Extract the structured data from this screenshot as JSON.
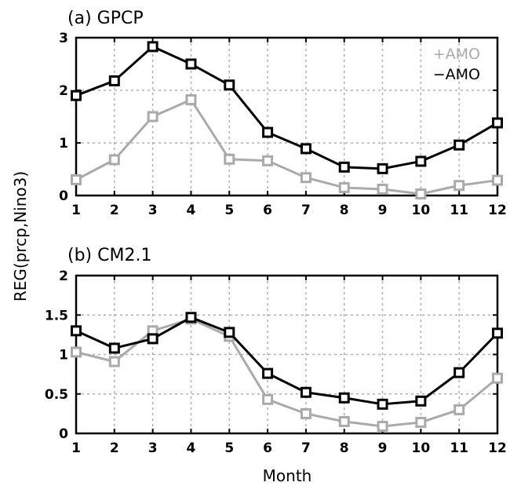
{
  "chart_data": [
    {
      "type": "line",
      "title": "(a)  GPCP",
      "x": [
        1,
        2,
        3,
        4,
        5,
        6,
        7,
        8,
        9,
        10,
        11,
        12
      ],
      "ylim": [
        0,
        3
      ],
      "yticks": [
        "0",
        "1",
        "2",
        "3"
      ],
      "yticks_values": [
        0,
        1,
        2,
        3
      ],
      "xticks": [
        "1",
        "2",
        "3",
        "4",
        "5",
        "6",
        "7",
        "8",
        "9",
        "10",
        "11",
        "12"
      ],
      "grid": true,
      "legend": {
        "placement": "top-right",
        "entries": [
          "+AMO",
          "−AMO"
        ]
      },
      "series": [
        {
          "name": "+AMO",
          "color": "#aaaaaa",
          "marker": "hollow-square",
          "values": [
            0.3,
            0.68,
            1.5,
            1.82,
            0.69,
            0.66,
            0.34,
            0.15,
            0.12,
            0.03,
            0.19,
            0.29
          ]
        },
        {
          "name": "−AMO",
          "color": "#000000",
          "marker": "hollow-square",
          "values": [
            1.9,
            2.18,
            2.83,
            2.5,
            2.1,
            1.2,
            0.89,
            0.54,
            0.51,
            0.65,
            0.96,
            1.38
          ]
        }
      ]
    },
    {
      "type": "line",
      "title": "(b)  CM2.1",
      "x": [
        1,
        2,
        3,
        4,
        5,
        6,
        7,
        8,
        9,
        10,
        11,
        12
      ],
      "ylim": [
        0,
        2
      ],
      "yticks": [
        "0",
        "0.5",
        "1",
        "1.5",
        "2"
      ],
      "yticks_values": [
        0,
        0.5,
        1,
        1.5,
        2
      ],
      "xticks": [
        "1",
        "2",
        "3",
        "4",
        "5",
        "6",
        "7",
        "8",
        "9",
        "10",
        "11",
        "12"
      ],
      "grid": true,
      "series": [
        {
          "name": "+AMO",
          "color": "#aaaaaa",
          "marker": "hollow-square",
          "values": [
            1.03,
            0.91,
            1.3,
            1.45,
            1.23,
            0.43,
            0.25,
            0.15,
            0.09,
            0.14,
            0.3,
            0.7
          ]
        },
        {
          "name": "−AMO",
          "color": "#000000",
          "marker": "hollow-square",
          "values": [
            1.3,
            1.08,
            1.2,
            1.47,
            1.28,
            0.76,
            0.52,
            0.45,
            0.37,
            0.41,
            0.77,
            1.27
          ]
        }
      ]
    }
  ],
  "xlabel": "Month",
  "ylabel": "REG(prcp,Nino3)"
}
